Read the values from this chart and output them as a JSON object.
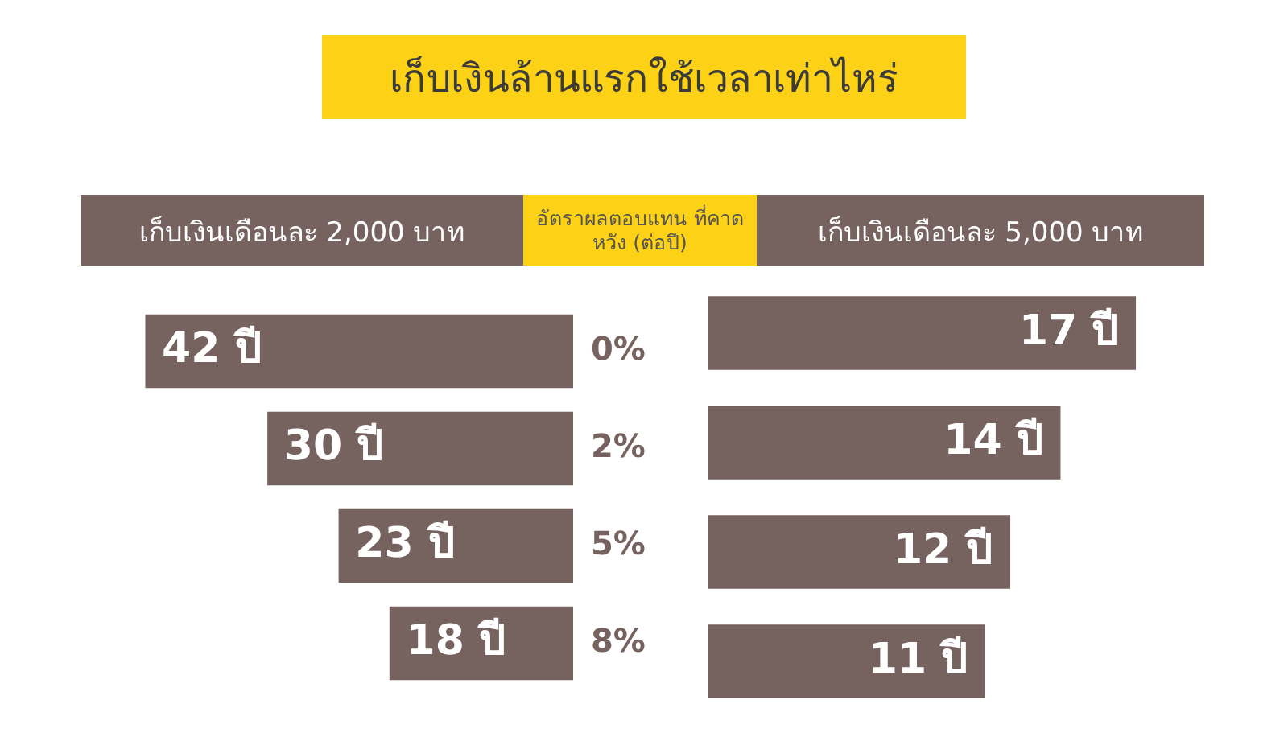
{
  "chart_data": [
    {
      "type": "bar",
      "orientation": "horizontal",
      "title": "เก็บเงินล้านแรกใช้เวลาเท่าไหร่",
      "ylabel": "อัตราผลตอบแทน ที่คาดหวัง (ต่อปี)",
      "categories": [
        "0%",
        "2%",
        "5%",
        "8%"
      ],
      "tick_labels": "y",
      "series": [
        {
          "name": "เก็บเงินเดือนละ 2,000 บาท",
          "color": "#76625f",
          "values": [
            42,
            30,
            23,
            18
          ],
          "value_labels": [
            "42 ปี",
            "30 ปี",
            "23 ปี",
            "18 ปี"
          ]
        }
      ]
    },
    {
      "type": "bar",
      "orientation": "horizontal",
      "categories": [
        null,
        null,
        null,
        null
      ],
      "tick_labels": false,
      "series": [
        {
          "name": "เก็บเงินเดือนละ 5,000 บาท",
          "color": "#76625f",
          "values": [
            17,
            14,
            12,
            11
          ],
          "value_labels": [
            "17 ปี",
            "14 ปี",
            "12 ปี",
            "11 ปี"
          ]
        }
      ]
    }
  ]
}
